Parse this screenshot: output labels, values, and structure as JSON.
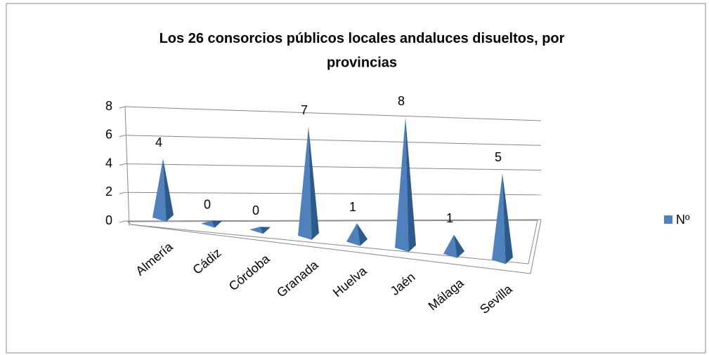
{
  "chart_data": {
    "type": "pyramid3d",
    "title": "Los 26 consorcios públicos locales andaluces disueltos, por provincias",
    "categories": [
      "Almería",
      "Cádiz",
      "Córdoba",
      "Granada",
      "Huelva",
      "Jaén",
      "Málaga",
      "Sevilla"
    ],
    "series": [
      {
        "name": "Nº",
        "color": "#4f81bd",
        "values": [
          4,
          0,
          0,
          7,
          1,
          8,
          1,
          5
        ]
      }
    ],
    "ylim": [
      0,
      8
    ],
    "yticks": [
      0,
      2,
      4,
      6,
      8
    ],
    "grid": true,
    "legend": "right",
    "data_labels": true
  }
}
